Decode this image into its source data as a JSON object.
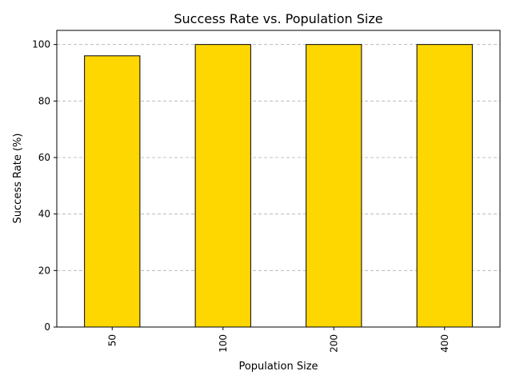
{
  "chart_data": {
    "type": "bar",
    "title": "Success Rate vs. Population Size",
    "xlabel": "Population Size",
    "ylabel": "Success Rate (%)",
    "categories": [
      "50",
      "100",
      "200",
      "400"
    ],
    "values": [
      96,
      100,
      100,
      100
    ],
    "ylim": [
      0,
      105
    ],
    "yticks": [
      0,
      20,
      40,
      60,
      80,
      100
    ],
    "grid": "y-dashed",
    "legend": "none",
    "bar_color": "#FFD700",
    "bar_edge_color": "#000000",
    "grid_color": "#b0b0b0"
  }
}
